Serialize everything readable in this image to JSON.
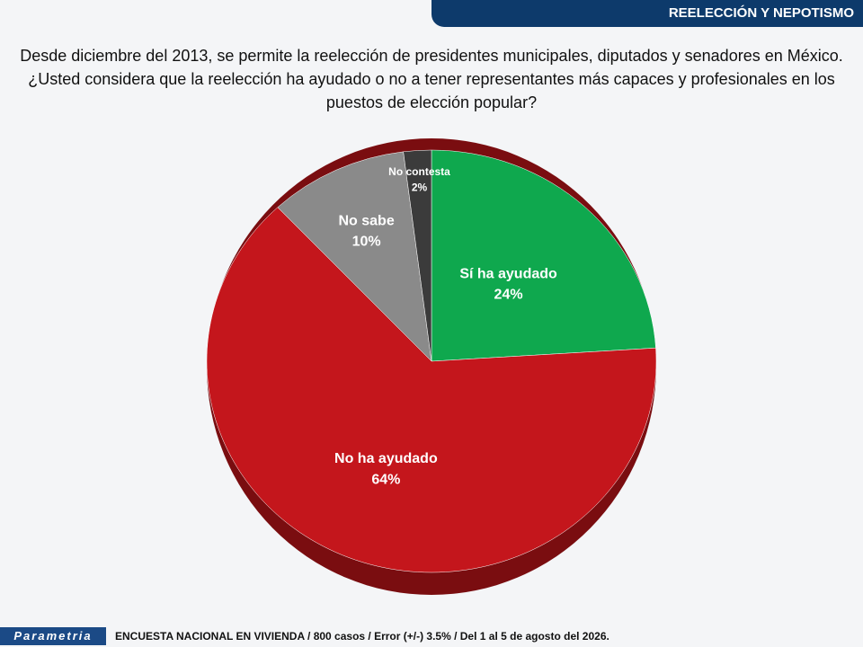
{
  "header": {
    "section": "REELECCIÓN Y NEPOTISMO"
  },
  "chart_data": {
    "type": "pie",
    "title": "Desde diciembre del 2013, se permite la reelección de presidentes municipales, diputados y senadores en México. ¿Usted considera que la reelección ha ayudado o no a tener representantes más capaces y profesionales en los puestos de elección popular?",
    "categories": [
      "Sí ha ayudado",
      "No ha ayudado",
      "No sabe",
      "No contesta"
    ],
    "values": [
      24,
      64,
      10,
      2
    ],
    "value_labels": [
      "24%",
      "64%",
      "10%",
      "2%"
    ],
    "colors": [
      "#0fa84e",
      "#c4161c",
      "#8a8a8a",
      "#3b3b3b"
    ]
  },
  "footer": {
    "logo": "Parametria",
    "note": "ENCUESTA NACIONAL EN VIVIENDA / 800 casos / Error (+/-) 3.5% / Del 1 al 5 de agosto del 2026."
  }
}
